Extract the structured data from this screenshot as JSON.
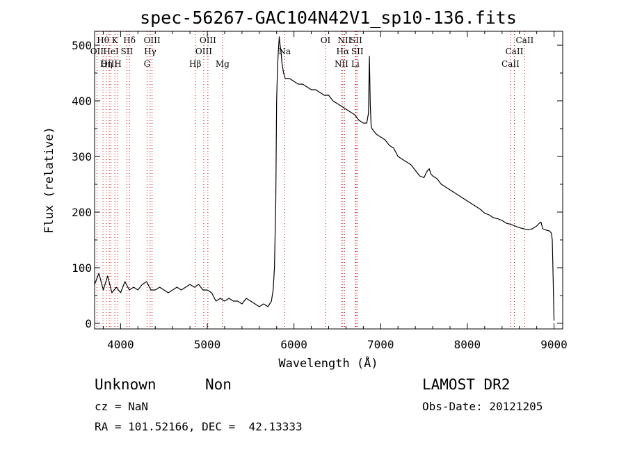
{
  "chart_data": {
    "type": "line",
    "title": "spec-56267-GAC104N42V1_sp10-136.fits",
    "xlabel": "Wavelength (Å)",
    "ylabel": "Flux (relative)",
    "xlim": [
      3700,
      9100
    ],
    "ylim": [
      -10,
      525
    ],
    "xticks": [
      4000,
      5000,
      6000,
      7000,
      8000,
      9000
    ],
    "yticks": [
      0,
      100,
      200,
      300,
      400,
      500
    ],
    "grid": false,
    "series": [
      {
        "x": [
          3700,
          3750,
          3800,
          3850,
          3900,
          3950,
          4000,
          4050,
          4100,
          4150,
          4200,
          4250,
          4300,
          4350,
          4400,
          4450,
          4500,
          4550,
          4600,
          4650,
          4700,
          4750,
          4800,
          4850,
          4900,
          4950,
          5000,
          5050,
          5100,
          5150,
          5200,
          5250,
          5300,
          5350,
          5400,
          5450,
          5500,
          5550,
          5600,
          5650,
          5700,
          5740,
          5760,
          5775,
          5790,
          5800,
          5810,
          5820,
          5830,
          5840,
          5850,
          5860,
          5870,
          5880,
          5900,
          5950,
          6000,
          6050,
          6100,
          6150,
          6200,
          6250,
          6300,
          6350,
          6400,
          6450,
          6500,
          6550,
          6600,
          6650,
          6700,
          6750,
          6800,
          6840,
          6860,
          6870,
          6880,
          6890,
          6900,
          6950,
          7000,
          7050,
          7100,
          7150,
          7200,
          7250,
          7300,
          7350,
          7400,
          7450,
          7500,
          7530,
          7560,
          7580,
          7600,
          7650,
          7700,
          7750,
          7800,
          7850,
          7900,
          7950,
          8000,
          8050,
          8100,
          8150,
          8200,
          8250,
          8300,
          8350,
          8400,
          8450,
          8500,
          8550,
          8600,
          8650,
          8700,
          8750,
          8800,
          8830,
          8850,
          8870,
          8900,
          8950,
          8970,
          8980,
          8990,
          9000
        ],
        "values": [
          70,
          90,
          60,
          85,
          55,
          65,
          55,
          75,
          60,
          65,
          60,
          70,
          75,
          60,
          60,
          65,
          60,
          55,
          60,
          65,
          60,
          65,
          70,
          65,
          70,
          60,
          60,
          55,
          40,
          45,
          40,
          45,
          40,
          40,
          35,
          45,
          40,
          35,
          30,
          35,
          30,
          40,
          60,
          100,
          220,
          400,
          460,
          490,
          515,
          500,
          490,
          470,
          460,
          450,
          440,
          440,
          435,
          430,
          430,
          425,
          420,
          420,
          415,
          410,
          410,
          400,
          395,
          390,
          385,
          380,
          375,
          365,
          360,
          360,
          378,
          480,
          395,
          355,
          350,
          340,
          335,
          330,
          320,
          315,
          300,
          295,
          290,
          285,
          275,
          265,
          262,
          272,
          278,
          268,
          265,
          260,
          250,
          245,
          240,
          235,
          230,
          225,
          220,
          215,
          210,
          205,
          198,
          195,
          190,
          188,
          185,
          180,
          178,
          175,
          172,
          170,
          168,
          170,
          175,
          180,
          182,
          170,
          168,
          166,
          162,
          150,
          80,
          5
        ]
      }
    ],
    "line_markers": [
      {
        "label": "Hθ",
        "x": 3797,
        "row": 1
      },
      {
        "label": "OII",
        "x": 3727,
        "row": 2
      },
      {
        "label": "OIII",
        "x": 3869,
        "row": 3
      },
      {
        "label": "K",
        "x": 3934,
        "row": 1
      },
      {
        "label": "HeI",
        "x": 3889,
        "row": 2
      },
      {
        "label": "Hη",
        "x": 3835,
        "row": 3
      },
      {
        "label": "Hδ",
        "x": 4102,
        "row": 1
      },
      {
        "label": "SII",
        "x": 4072,
        "row": 2
      },
      {
        "label": "H",
        "x": 3969,
        "row": 3
      },
      {
        "label": "OIII",
        "x": 4363,
        "row": 1
      },
      {
        "label": "Hγ",
        "x": 4341,
        "row": 2
      },
      {
        "label": "G",
        "x": 4305,
        "row": 3
      },
      {
        "label": "OIII",
        "x": 5007,
        "row": 1
      },
      {
        "label": "OIII",
        "x": 4959,
        "row": 2
      },
      {
        "label": "Hβ",
        "x": 4861,
        "row": 3
      },
      {
        "label": "Mg",
        "x": 5175,
        "row": 3
      },
      {
        "label": "Na",
        "x": 5893,
        "row": 2
      },
      {
        "label": "OI",
        "x": 6364,
        "row": 1
      },
      {
        "label": "NII",
        "x": 6584,
        "row": 1
      },
      {
        "label": "SII",
        "x": 6717,
        "row": 1
      },
      {
        "label": "Hα",
        "x": 6563,
        "row": 2
      },
      {
        "label": "SII",
        "x": 6731,
        "row": 2
      },
      {
        "label": "NII",
        "x": 6548,
        "row": 3
      },
      {
        "label": "Li",
        "x": 6708,
        "row": 3
      },
      {
        "label": "CaII",
        "x": 8662,
        "row": 1
      },
      {
        "label": "CaII",
        "x": 8542,
        "row": 2
      },
      {
        "label": "CaII",
        "x": 8498,
        "row": 3
      }
    ]
  },
  "info": {
    "class": "Unknown",
    "subclass": "Non",
    "survey": "LAMOST DR2",
    "cz": "cz = NaN",
    "obs_date": "Obs-Date: 20121205",
    "radec": "RA = 101.52166, DEC =  42.13333"
  },
  "colors": {
    "spectrum": "#000000",
    "marker_lines": "#cc0000",
    "axes": "#000000"
  }
}
